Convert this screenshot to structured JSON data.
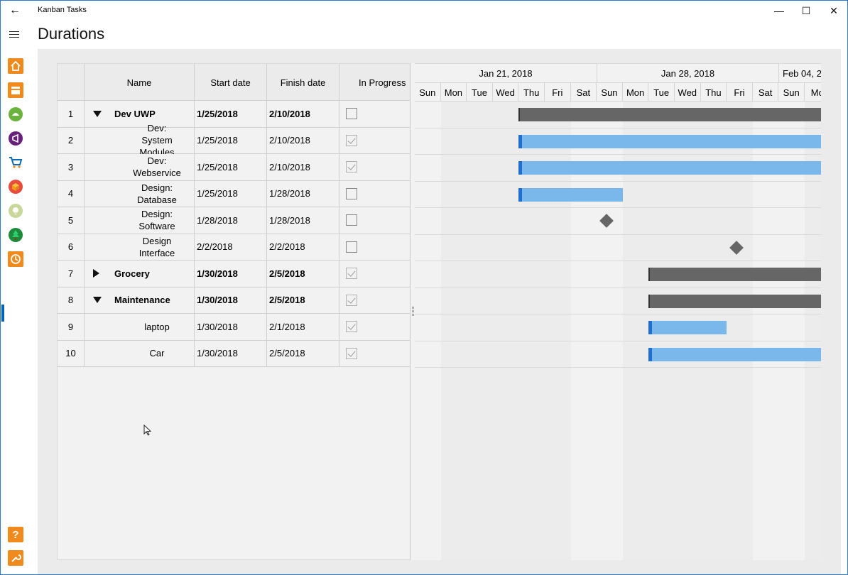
{
  "titlebar": {
    "app_title": "Kanban Tasks",
    "back_icon": "back-arrow-icon",
    "minimize": "—",
    "maximize": "☐",
    "close": "✕"
  },
  "header": {
    "page_title": "Durations"
  },
  "sidenav": {
    "items": [
      {
        "icon": "home-icon",
        "color": "#f08a1c"
      },
      {
        "icon": "contacts-icon",
        "color": "#f08a1c"
      },
      {
        "icon": "android-icon",
        "color": "#6cb33e"
      },
      {
        "icon": "visual-studio-icon",
        "color": "#68217a"
      },
      {
        "icon": "shopping-cart-icon",
        "color": "#0e6bb3"
      },
      {
        "icon": "box-icon",
        "color": "#e74c3c"
      },
      {
        "icon": "lightbulb-icon",
        "color": "#c7d89a"
      },
      {
        "icon": "tree-icon",
        "color": "#1e8b3a"
      },
      {
        "icon": "history-icon",
        "color": "#f08a1c"
      }
    ],
    "bottom": [
      {
        "icon": "help-icon",
        "color": "#f08a1c",
        "glyph": "?"
      },
      {
        "icon": "settings-wrench-icon",
        "color": "#f08a1c"
      }
    ]
  },
  "grid": {
    "columns": [
      "",
      "Name",
      "Start date",
      "Finish date",
      "In Progress"
    ],
    "rows": [
      {
        "num": "1",
        "name": "Dev UWP",
        "start": "1/25/2018",
        "finish": "2/10/2018",
        "checked": false,
        "bold": true,
        "expander": "down",
        "indent": 0
      },
      {
        "num": "2",
        "name": "Dev: System Modules",
        "start": "1/25/2018",
        "finish": "2/10/2018",
        "checked": true,
        "bold": false,
        "expander": "none",
        "indent": 1
      },
      {
        "num": "3",
        "name": "Dev: Webservice",
        "start": "1/25/2018",
        "finish": "2/10/2018",
        "checked": true,
        "bold": false,
        "expander": "none",
        "indent": 1
      },
      {
        "num": "4",
        "name": "Design: Database",
        "start": "1/25/2018",
        "finish": "1/28/2018",
        "checked": false,
        "bold": false,
        "expander": "none",
        "indent": 1
      },
      {
        "num": "5",
        "name": "Design: Software",
        "start": "1/28/2018",
        "finish": "1/28/2018",
        "checked": false,
        "bold": false,
        "expander": "none",
        "indent": 1
      },
      {
        "num": "6",
        "name": "Design Interface",
        "start": "2/2/2018",
        "finish": "2/2/2018",
        "checked": false,
        "bold": false,
        "expander": "none",
        "indent": 1
      },
      {
        "num": "7",
        "name": "Grocery",
        "start": "1/30/2018",
        "finish": "2/5/2018",
        "checked": true,
        "bold": true,
        "expander": "right",
        "indent": 0
      },
      {
        "num": "8",
        "name": "Maintenance",
        "start": "1/30/2018",
        "finish": "2/5/2018",
        "checked": true,
        "bold": true,
        "expander": "down",
        "indent": 0
      },
      {
        "num": "9",
        "name": "laptop",
        "start": "1/30/2018",
        "finish": "2/1/2018",
        "checked": true,
        "bold": false,
        "expander": "none",
        "indent": 1
      },
      {
        "num": "10",
        "name": "Car",
        "start": "1/30/2018",
        "finish": "2/5/2018",
        "checked": true,
        "bold": false,
        "expander": "none",
        "indent": 1
      }
    ]
  },
  "gantt": {
    "weeks": [
      "Jan 21, 2018",
      "Jan 28, 2018",
      "Feb 04, 2"
    ],
    "days": [
      "Sun",
      "Mon",
      "Tue",
      "Wed",
      "Thu",
      "Fri",
      "Sat",
      "Sun",
      "Mon",
      "Tue",
      "Wed",
      "Thu",
      "Fri",
      "Sat",
      "Sun",
      "Mo"
    ],
    "visible_start_date": "2018-01-21",
    "labels": [
      "Dev UWP",
      "System Modules",
      "Dev: Webservice",
      "Design: Database",
      "Design: Software",
      "Design Interface",
      "Grocery",
      "Maintenance",
      "laptop",
      "Car"
    ],
    "colors": {
      "summary": "#666666",
      "task": "#7ab8ec",
      "start_marker": "#1f6fd0"
    }
  }
}
